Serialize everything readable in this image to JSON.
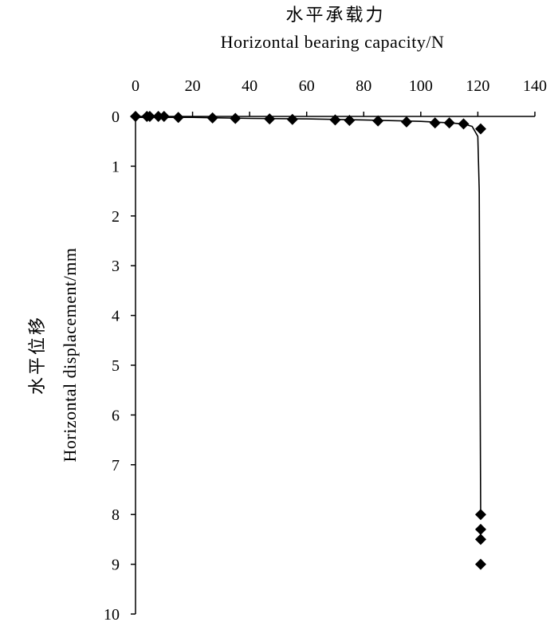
{
  "chart_data": {
    "type": "line",
    "title_cn": "水平承载力",
    "title_en": "Horizontal bearing capacity/N",
    "ylabel_cn": "水平位移",
    "ylabel_en": "Horizontal displacement/mm",
    "x_axis_position": "top",
    "y_axis_inverted": true,
    "xlim": [
      0,
      140
    ],
    "ylim": [
      0,
      10
    ],
    "x_ticks": [
      "0",
      "20",
      "40",
      "60",
      "80",
      "100",
      "120",
      "140"
    ],
    "y_ticks": [
      "0",
      "1",
      "2",
      "3",
      "4",
      "5",
      "6",
      "7",
      "8",
      "9",
      "10"
    ],
    "marker": "diamond",
    "grid": false,
    "series": [
      {
        "x": [
          0,
          4,
          5,
          8,
          10,
          15,
          27,
          35,
          47,
          55,
          70,
          75,
          85,
          95,
          105,
          110,
          115,
          121,
          121,
          121,
          121,
          121
        ],
        "y": [
          0,
          0,
          0,
          0,
          0,
          0.02,
          0.03,
          0.04,
          0.05,
          0.06,
          0.07,
          0.08,
          0.09,
          0.11,
          0.13,
          0.13,
          0.15,
          0.25,
          8.0,
          8.3,
          8.5,
          9.0
        ]
      }
    ],
    "curve": {
      "x": [
        0,
        20,
        40,
        60,
        80,
        100,
        110,
        115,
        118,
        120,
        120.5,
        121
      ],
      "y": [
        0.02,
        0.02,
        0.04,
        0.05,
        0.07,
        0.1,
        0.13,
        0.15,
        0.2,
        0.4,
        1.5,
        8.0
      ]
    }
  }
}
